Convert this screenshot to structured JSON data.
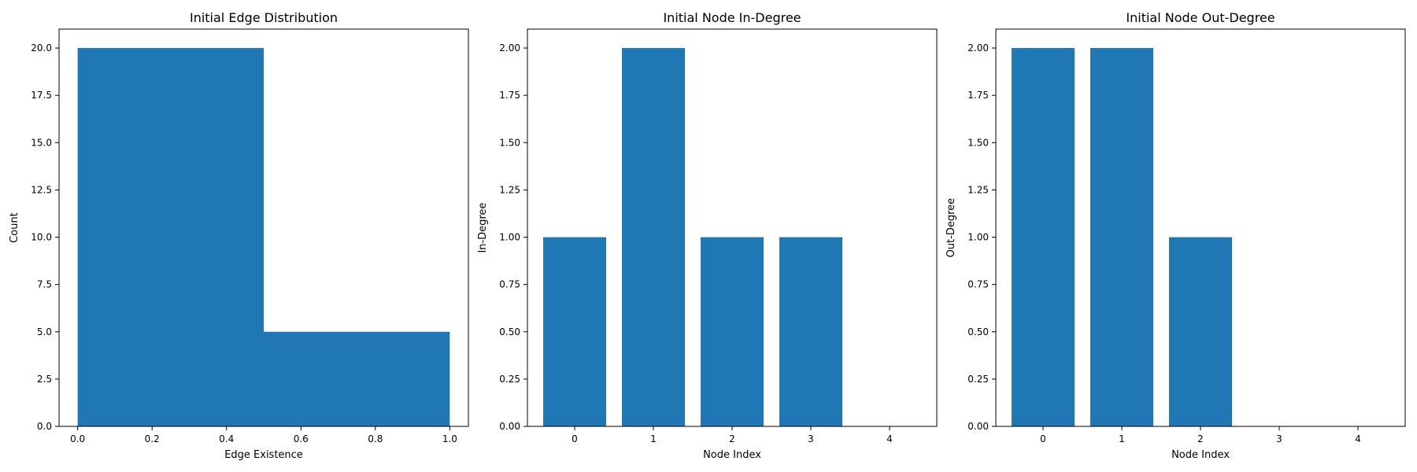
{
  "chart_data": [
    {
      "type": "bar",
      "title": "Initial Edge Distribution",
      "xlabel": "Edge Existence",
      "ylabel": "Count",
      "histogram": true,
      "bins": [
        {
          "start": 0.0,
          "end": 0.5,
          "value": 20
        },
        {
          "start": 0.5,
          "end": 1.0,
          "value": 5
        }
      ],
      "xlim": [
        -0.05,
        1.05
      ],
      "ylim": [
        0,
        21
      ],
      "xticks": [
        0.0,
        0.2,
        0.4,
        0.6,
        0.8,
        1.0
      ],
      "xtick_labels": [
        "0.0",
        "0.2",
        "0.4",
        "0.6",
        "0.8",
        "1.0"
      ],
      "yticks": [
        0,
        2.5,
        5,
        7.5,
        10,
        12.5,
        15,
        17.5,
        20
      ],
      "ytick_labels": [
        "0.0",
        "2.5",
        "5.0",
        "7.5",
        "10.0",
        "12.5",
        "15.0",
        "17.5",
        "20.0"
      ],
      "color": "#1f77b4",
      "grid": false
    },
    {
      "type": "bar",
      "title": "Initial Node In-Degree",
      "xlabel": "Node Index",
      "ylabel": "In-Degree",
      "categories": [
        0,
        1,
        2,
        3,
        4
      ],
      "values": [
        1,
        2,
        1,
        1,
        0
      ],
      "bar_width": 0.8,
      "xlim": [
        -0.6,
        4.6
      ],
      "ylim": [
        0,
        2.1
      ],
      "xtick_labels": [
        "0",
        "1",
        "2",
        "3",
        "4"
      ],
      "yticks": [
        0,
        0.25,
        0.5,
        0.75,
        1,
        1.25,
        1.5,
        1.75,
        2
      ],
      "ytick_labels": [
        "0.00",
        "0.25",
        "0.50",
        "0.75",
        "1.00",
        "1.25",
        "1.50",
        "1.75",
        "2.00"
      ],
      "color": "#1f77b4",
      "grid": false
    },
    {
      "type": "bar",
      "title": "Initial Node Out-Degree",
      "xlabel": "Node Index",
      "ylabel": "Out-Degree",
      "categories": [
        0,
        1,
        2,
        3,
        4
      ],
      "values": [
        2,
        2,
        1,
        0,
        0
      ],
      "bar_width": 0.8,
      "xlim": [
        -0.6,
        4.6
      ],
      "ylim": [
        0,
        2.1
      ],
      "xtick_labels": [
        "0",
        "1",
        "2",
        "3",
        "4"
      ],
      "yticks": [
        0,
        0.25,
        0.5,
        0.75,
        1,
        1.25,
        1.5,
        1.75,
        2
      ],
      "ytick_labels": [
        "0.00",
        "0.25",
        "0.50",
        "0.75",
        "1.00",
        "1.25",
        "1.50",
        "1.75",
        "2.00"
      ],
      "color": "#1f77b4",
      "grid": false
    }
  ]
}
